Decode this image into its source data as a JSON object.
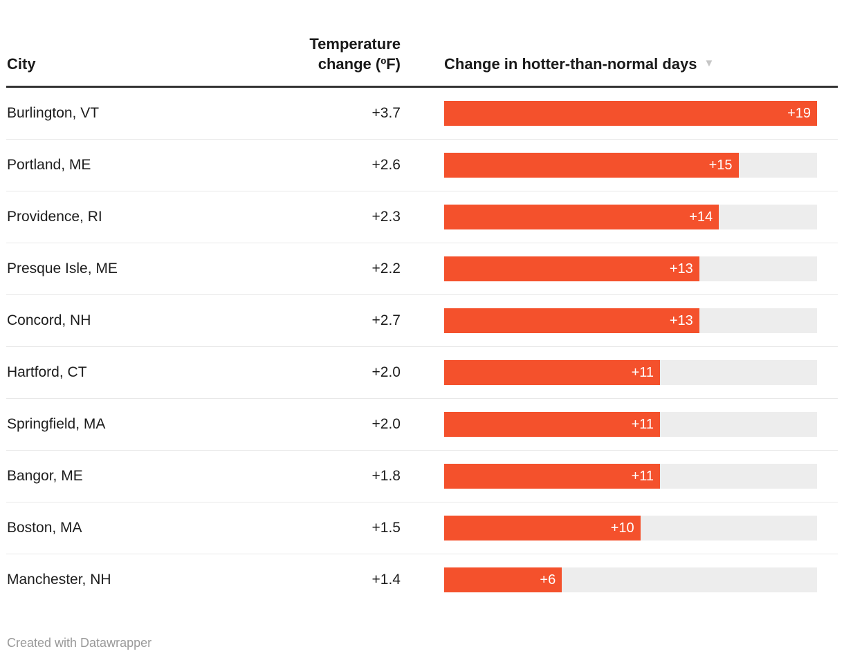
{
  "table": {
    "columns": {
      "city": "City",
      "temp_line1": "Temperature",
      "temp_line2": "change (ºF)",
      "bars": "Change in hotter-than-normal days",
      "sort_icon": "▼"
    },
    "bar_max": 19,
    "rows": [
      {
        "city": "Burlington, VT",
        "temp": "+3.7",
        "days": 19,
        "days_label": "+19"
      },
      {
        "city": "Portland, ME",
        "temp": "+2.6",
        "days": 15,
        "days_label": "+15"
      },
      {
        "city": "Providence, RI",
        "temp": "+2.3",
        "days": 14,
        "days_label": "+14"
      },
      {
        "city": "Presque Isle, ME",
        "temp": "+2.2",
        "days": 13,
        "days_label": "+13"
      },
      {
        "city": "Concord, NH",
        "temp": "+2.7",
        "days": 13,
        "days_label": "+13"
      },
      {
        "city": "Hartford, CT",
        "temp": "+2.0",
        "days": 11,
        "days_label": "+11"
      },
      {
        "city": "Springfield, MA",
        "temp": "+2.0",
        "days": 11,
        "days_label": "+11"
      },
      {
        "city": "Bangor, ME",
        "temp": "+1.8",
        "days": 11,
        "days_label": "+11"
      },
      {
        "city": "Boston, MA",
        "temp": "+1.5",
        "days": 10,
        "days_label": "+10"
      },
      {
        "city": "Manchester, NH",
        "temp": "+1.4",
        "days": 6,
        "days_label": "+6"
      }
    ]
  },
  "footer": {
    "credit": "Created with Datawrapper"
  },
  "colors": {
    "bar": "#f4512c",
    "bar_track": "#ededed",
    "header_rule": "#333333",
    "row_divider": "#e8e8e8",
    "text": "#1d1d1d",
    "bar_label": "#ffffff",
    "sort_icon": "#c6c6c6",
    "footer_text": "#999999"
  },
  "chart_data": {
    "type": "bar",
    "title": "",
    "columns": [
      "City",
      "Temperature change (ºF)",
      "Change in hotter-than-normal days"
    ],
    "categories": [
      "Burlington, VT",
      "Portland, ME",
      "Providence, RI",
      "Presque Isle, ME",
      "Concord, NH",
      "Hartford, CT",
      "Springfield, MA",
      "Bangor, ME",
      "Boston, MA",
      "Manchester, NH"
    ],
    "series": [
      {
        "name": "Temperature change (ºF)",
        "values": [
          3.7,
          2.6,
          2.3,
          2.2,
          2.7,
          2.0,
          2.0,
          1.8,
          1.5,
          1.4
        ]
      },
      {
        "name": "Change in hotter-than-normal days",
        "values": [
          19,
          15,
          14,
          13,
          13,
          11,
          11,
          11,
          10,
          6
        ]
      }
    ],
    "xlim": [
      0,
      19
    ],
    "sort": "descending by hotter-than-normal days",
    "grid": false,
    "legend": false,
    "orientation": "horizontal"
  }
}
